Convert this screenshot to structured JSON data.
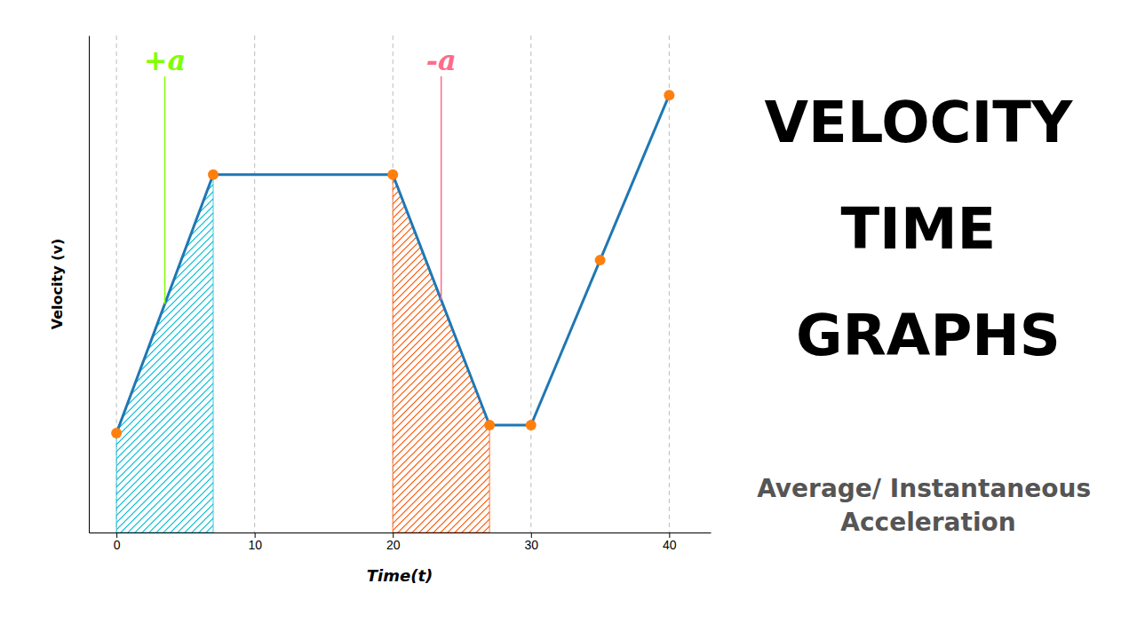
{
  "chart_data": {
    "type": "line",
    "title": "VELOCITY TIME GRAPHS",
    "subtitle": "Average/ Instantaneous\nAcceleration",
    "xlabel": "Time(t)",
    "ylabel": "Velocity (v)",
    "xlim": [
      -2,
      43
    ],
    "ylim": [
      -1.5,
      11
    ],
    "xticks": [
      0,
      10,
      20,
      30,
      40
    ],
    "grid": true,
    "tick_labels": "x",
    "series": [
      {
        "type": "area",
        "color": "#00bcd4",
        "x": [
          0,
          7
        ],
        "values": [
          1.0,
          7.5
        ]
      },
      {
        "type": "area",
        "color": "#ff5500",
        "x": [
          20,
          27
        ],
        "values": [
          7.5,
          1.2
        ]
      },
      {
        "type": "line",
        "x": [
          0,
          7,
          20,
          27,
          30,
          40
        ],
        "values": [
          1.0,
          7.5,
          7.5,
          1.2,
          1.2,
          9.5
        ]
      },
      {
        "type": "scatter",
        "marker": "o",
        "x": [
          0,
          7,
          20,
          27,
          30,
          35,
          40
        ],
        "values": [
          1.0,
          7.5,
          7.5,
          1.2,
          1.2,
          5.35,
          9.5
        ]
      }
    ],
    "annotations": [
      {
        "text": "+a",
        "color": "#7fff00"
      },
      {
        "text": "-a",
        "color": "#ff6b8a"
      }
    ]
  }
}
